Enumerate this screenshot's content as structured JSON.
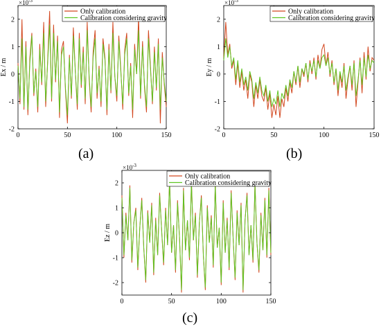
{
  "colors": {
    "calib": "#d2461e",
    "gravity": "#5ec521"
  },
  "chart_data": [
    {
      "type": "line",
      "panel": "(a)",
      "ylabel": "Ex / m",
      "exponent": "×10",
      "exponent_power": "-3",
      "xlim": [
        0,
        150
      ],
      "ylim": [
        -2,
        2.5
      ],
      "xticks": [
        0,
        50,
        100,
        150
      ],
      "yticks": [
        -2,
        -1,
        0,
        1,
        2
      ],
      "legend": [
        "Only calibration",
        "Calibration considering gravity"
      ],
      "series": [
        {
          "name": "Only calibration",
          "x": [
            0,
            2,
            4,
            6,
            8,
            10,
            12,
            14,
            16,
            18,
            20,
            22,
            24,
            26,
            28,
            30,
            32,
            34,
            36,
            38,
            40,
            42,
            44,
            46,
            48,
            50,
            52,
            54,
            56,
            58,
            60,
            62,
            64,
            66,
            68,
            70,
            72,
            74,
            76,
            78,
            80,
            82,
            84,
            86,
            88,
            90,
            92,
            94,
            96,
            98,
            100,
            102,
            104,
            106,
            108,
            110,
            112,
            114,
            116,
            118,
            120,
            122,
            124,
            126,
            128,
            130,
            132,
            134,
            136,
            138,
            140,
            142,
            144,
            146,
            148,
            150
          ],
          "values": [
            0.4,
            -1.1,
            2.0,
            -1.3,
            1.2,
            -1.5,
            0.6,
            1.5,
            -0.8,
            0.2,
            -1.4,
            1.1,
            -0.4,
            1.9,
            -1.2,
            0.5,
            2.3,
            -1.0,
            1.8,
            -0.3,
            1.4,
            -1.6,
            0.9,
            1.2,
            -0.6,
            -1.8,
            0.7,
            -0.9,
            1.7,
            0.1,
            -1.3,
            1.5,
            -0.5,
            1.0,
            -1.1,
            1.9,
            -0.2,
            -1.4,
            0.8,
            1.6,
            -0.9,
            0.3,
            -1.2,
            1.3,
            0.6,
            -1.5,
            1.1,
            -0.7,
            1.9,
            -0.1,
            -1.0,
            1.4,
            0.2,
            -1.3,
            0.9,
            1.5,
            -0.8,
            0.4,
            -1.6,
            1.1,
            0.0,
            2.1,
            -0.9,
            1.2,
            -0.5,
            -1.4,
            1.6,
            0.3,
            -1.1,
            1.0,
            -0.6,
            1.3,
            -1.8,
            0.8,
            -0.4,
            -1.2
          ]
        },
        {
          "name": "Calibration considering gravity",
          "x": [
            0,
            2,
            4,
            6,
            8,
            10,
            12,
            14,
            16,
            18,
            20,
            22,
            24,
            26,
            28,
            30,
            32,
            34,
            36,
            38,
            40,
            42,
            44,
            46,
            48,
            50,
            52,
            54,
            56,
            58,
            60,
            62,
            64,
            66,
            68,
            70,
            72,
            74,
            76,
            78,
            80,
            82,
            84,
            86,
            88,
            90,
            92,
            94,
            96,
            98,
            100,
            102,
            104,
            106,
            108,
            110,
            112,
            114,
            116,
            118,
            120,
            122,
            124,
            126,
            128,
            130,
            132,
            134,
            136,
            138,
            140,
            142,
            144,
            146,
            148,
            150
          ],
          "values": [
            0.3,
            -0.9,
            1.3,
            -1.2,
            1.0,
            -1.3,
            0.4,
            1.4,
            -0.7,
            0.1,
            -1.2,
            0.9,
            -0.3,
            1.5,
            -1.0,
            0.4,
            1.8,
            -0.9,
            1.5,
            -0.2,
            1.2,
            -1.4,
            0.7,
            1.0,
            -0.5,
            -1.5,
            0.6,
            -0.8,
            1.4,
            0.1,
            -1.1,
            1.3,
            -0.4,
            0.8,
            -0.9,
            1.6,
            -0.1,
            -1.2,
            0.6,
            1.3,
            -0.7,
            0.2,
            -1.0,
            1.1,
            0.5,
            -1.3,
            0.9,
            -0.6,
            1.5,
            -0.1,
            -0.8,
            1.2,
            0.1,
            -1.1,
            0.7,
            1.3,
            -0.7,
            0.3,
            -1.3,
            0.9,
            0.0,
            1.6,
            -0.8,
            1.0,
            -0.4,
            -1.2,
            1.3,
            0.2,
            -1.0,
            0.8,
            -0.5,
            1.1,
            -1.3,
            0.6,
            -0.3,
            -1.0
          ]
        }
      ]
    },
    {
      "type": "line",
      "panel": "(b)",
      "ylabel": "Ey / m",
      "exponent": "×10",
      "exponent_power": "-3",
      "xlim": [
        0,
        150
      ],
      "ylim": [
        -2,
        2.5
      ],
      "xticks": [
        0,
        50,
        100,
        150
      ],
      "yticks": [
        -2,
        -1,
        0,
        1,
        2
      ],
      "legend": [
        "Only calibration",
        "Calibration considering gravity"
      ],
      "series": [
        {
          "name": "Only calibration",
          "x": [
            0,
            2,
            4,
            6,
            8,
            10,
            12,
            14,
            16,
            18,
            20,
            22,
            24,
            26,
            28,
            30,
            32,
            34,
            36,
            38,
            40,
            42,
            44,
            46,
            48,
            50,
            52,
            54,
            56,
            58,
            60,
            62,
            64,
            66,
            68,
            70,
            72,
            74,
            76,
            78,
            80,
            82,
            84,
            86,
            88,
            90,
            92,
            94,
            96,
            98,
            100,
            102,
            104,
            106,
            108,
            110,
            112,
            114,
            116,
            118,
            120,
            122,
            124,
            126,
            128,
            130,
            132,
            134,
            136,
            138,
            140,
            142,
            144,
            146,
            148,
            150
          ],
          "values": [
            0.6,
            1.9,
            0.7,
            1.1,
            0.2,
            0.5,
            -0.4,
            0.4,
            -0.5,
            0.1,
            -0.6,
            -0.2,
            -0.9,
            0.0,
            -0.3,
            -1.2,
            -0.4,
            -0.9,
            -0.2,
            -0.8,
            -1.0,
            -0.5,
            -1.3,
            -0.7,
            -1.6,
            -1.1,
            -1.5,
            -0.8,
            -1.6,
            -0.9,
            -1.2,
            -0.5,
            -1.0,
            -0.3,
            -0.7,
            0.1,
            -0.4,
            0.3,
            -0.5,
            0.2,
            -0.1,
            0.4,
            -0.3,
            0.5,
            0.0,
            0.6,
            -0.2,
            0.7,
            0.2,
            0.9,
            1.1,
            0.3,
            0.8,
            -0.1,
            0.5,
            -0.4,
            0.2,
            -0.8,
            0.0,
            -0.5,
            0.4,
            -0.9,
            -0.2,
            0.3,
            -0.6,
            0.5,
            -1.2,
            -0.3,
            0.6,
            -0.7,
            0.8,
            -0.2,
            1.0,
            0.1,
            0.6,
            0.5
          ]
        },
        {
          "name": "Calibration considering gravity",
          "x": [
            0,
            2,
            4,
            6,
            8,
            10,
            12,
            14,
            16,
            18,
            20,
            22,
            24,
            26,
            28,
            30,
            32,
            34,
            36,
            38,
            40,
            42,
            44,
            46,
            48,
            50,
            52,
            54,
            56,
            58,
            60,
            62,
            64,
            66,
            68,
            70,
            72,
            74,
            76,
            78,
            80,
            82,
            84,
            86,
            88,
            90,
            92,
            94,
            96,
            98,
            100,
            102,
            104,
            106,
            108,
            110,
            112,
            114,
            116,
            118,
            120,
            122,
            124,
            126,
            128,
            130,
            132,
            134,
            136,
            138,
            140,
            142,
            144,
            146,
            148,
            150
          ],
          "values": [
            0.5,
            1.3,
            0.6,
            1.0,
            0.3,
            0.6,
            -0.2,
            0.5,
            -0.3,
            0.2,
            -0.4,
            -0.1,
            -0.6,
            0.1,
            -0.2,
            -0.9,
            -0.3,
            -0.7,
            -0.1,
            -0.6,
            -0.8,
            -0.4,
            -1.0,
            -0.6,
            -1.2,
            -0.9,
            -1.1,
            -0.6,
            -1.2,
            -0.7,
            -0.9,
            -0.4,
            -0.8,
            -0.2,
            -0.5,
            0.1,
            -0.3,
            0.3,
            -0.3,
            0.2,
            0.0,
            0.4,
            -0.2,
            0.4,
            0.1,
            0.5,
            -0.1,
            0.5,
            0.2,
            0.6,
            0.7,
            0.3,
            0.6,
            0.0,
            0.4,
            -0.3,
            0.2,
            -0.6,
            0.1,
            -0.3,
            0.3,
            -0.6,
            -0.1,
            0.3,
            -0.4,
            0.4,
            -0.8,
            -0.2,
            0.5,
            -0.4,
            0.6,
            -0.1,
            0.7,
            0.2,
            0.5,
            0.4
          ]
        }
      ]
    },
    {
      "type": "line",
      "panel": "(c)",
      "ylabel": "Ez / m",
      "exponent": "×10",
      "exponent_power": "-3",
      "xlim": [
        0,
        150
      ],
      "ylim": [
        -2.5,
        2.5
      ],
      "xticks": [
        0,
        50,
        100,
        150
      ],
      "yticks": [
        -2,
        -1,
        0,
        1,
        2
      ],
      "legend": [
        "Only calibration",
        "Calibration considering gravity"
      ],
      "series": [
        {
          "name": "Only calibration",
          "x": [
            0,
            2,
            4,
            6,
            8,
            10,
            12,
            14,
            16,
            18,
            20,
            22,
            24,
            26,
            28,
            30,
            32,
            34,
            36,
            38,
            40,
            42,
            44,
            46,
            48,
            50,
            52,
            54,
            56,
            58,
            60,
            62,
            64,
            66,
            68,
            70,
            72,
            74,
            76,
            78,
            80,
            82,
            84,
            86,
            88,
            90,
            92,
            94,
            96,
            98,
            100,
            102,
            104,
            106,
            108,
            110,
            112,
            114,
            116,
            118,
            120,
            122,
            124,
            126,
            128,
            130,
            132,
            134,
            136,
            138,
            140,
            142,
            144,
            146,
            148,
            150
          ],
          "values": [
            1.5,
            -1.0,
            0.8,
            -0.3,
            1.9,
            -1.2,
            0.4,
            1.0,
            -1.5,
            0.2,
            1.4,
            -0.6,
            -2.0,
            0.9,
            -0.4,
            1.2,
            -1.7,
            0.6,
            -0.9,
            1.6,
            0.1,
            -1.3,
            1.0,
            -0.5,
            2.2,
            -0.8,
            0.3,
            -1.6,
            1.3,
            -0.2,
            -2.4,
            1.8,
            -0.7,
            0.5,
            -1.1,
            2.1,
            -0.3,
            0.8,
            -1.8,
            0.4,
            1.5,
            -0.9,
            -2.3,
            1.1,
            -0.4,
            0.7,
            -1.4,
            2.0,
            -0.6,
            0.2,
            -2.1,
            1.3,
            -0.8,
            0.6,
            -1.5,
            1.7,
            -0.2,
            -1.9,
            0.9,
            -0.5,
            1.2,
            -2.4,
            0.5,
            1.6,
            -0.9,
            0.3,
            -1.2,
            2.0,
            -0.4,
            -1.6,
            0.8,
            -0.7,
            1.4,
            -1.0,
            1.8,
            -0.9
          ]
        },
        {
          "name": "Calibration considering gravity",
          "x": [
            0,
            2,
            4,
            6,
            8,
            10,
            12,
            14,
            16,
            18,
            20,
            22,
            24,
            26,
            28,
            30,
            32,
            34,
            36,
            38,
            40,
            42,
            44,
            46,
            48,
            50,
            52,
            54,
            56,
            58,
            60,
            62,
            64,
            66,
            68,
            70,
            72,
            74,
            76,
            78,
            80,
            82,
            84,
            86,
            88,
            90,
            92,
            94,
            96,
            98,
            100,
            102,
            104,
            106,
            108,
            110,
            112,
            114,
            116,
            118,
            120,
            122,
            124,
            126,
            128,
            130,
            132,
            134,
            136,
            138,
            140,
            142,
            144,
            146,
            148,
            150
          ],
          "values": [
            1.4,
            -0.9,
            0.7,
            -0.3,
            1.8,
            -1.1,
            0.4,
            0.9,
            -1.4,
            0.2,
            1.3,
            -0.6,
            -1.9,
            0.8,
            -0.4,
            1.1,
            -1.6,
            0.5,
            -0.9,
            1.5,
            0.1,
            -1.2,
            0.9,
            -0.5,
            2.1,
            -0.8,
            0.3,
            -1.5,
            1.2,
            -0.2,
            -2.3,
            1.7,
            -0.7,
            0.5,
            -1.0,
            2.0,
            -0.3,
            0.7,
            -1.7,
            0.4,
            1.4,
            -0.9,
            -2.2,
            1.0,
            -0.4,
            0.6,
            -1.3,
            1.9,
            -0.6,
            0.2,
            -2.0,
            1.2,
            -0.8,
            0.5,
            -1.4,
            1.6,
            -0.2,
            -1.8,
            0.8,
            -0.5,
            1.1,
            -2.3,
            0.5,
            1.5,
            -0.9,
            0.3,
            -1.1,
            1.9,
            -0.4,
            -1.5,
            0.7,
            -0.7,
            1.3,
            -0.9,
            1.7,
            -0.8
          ]
        }
      ]
    }
  ]
}
